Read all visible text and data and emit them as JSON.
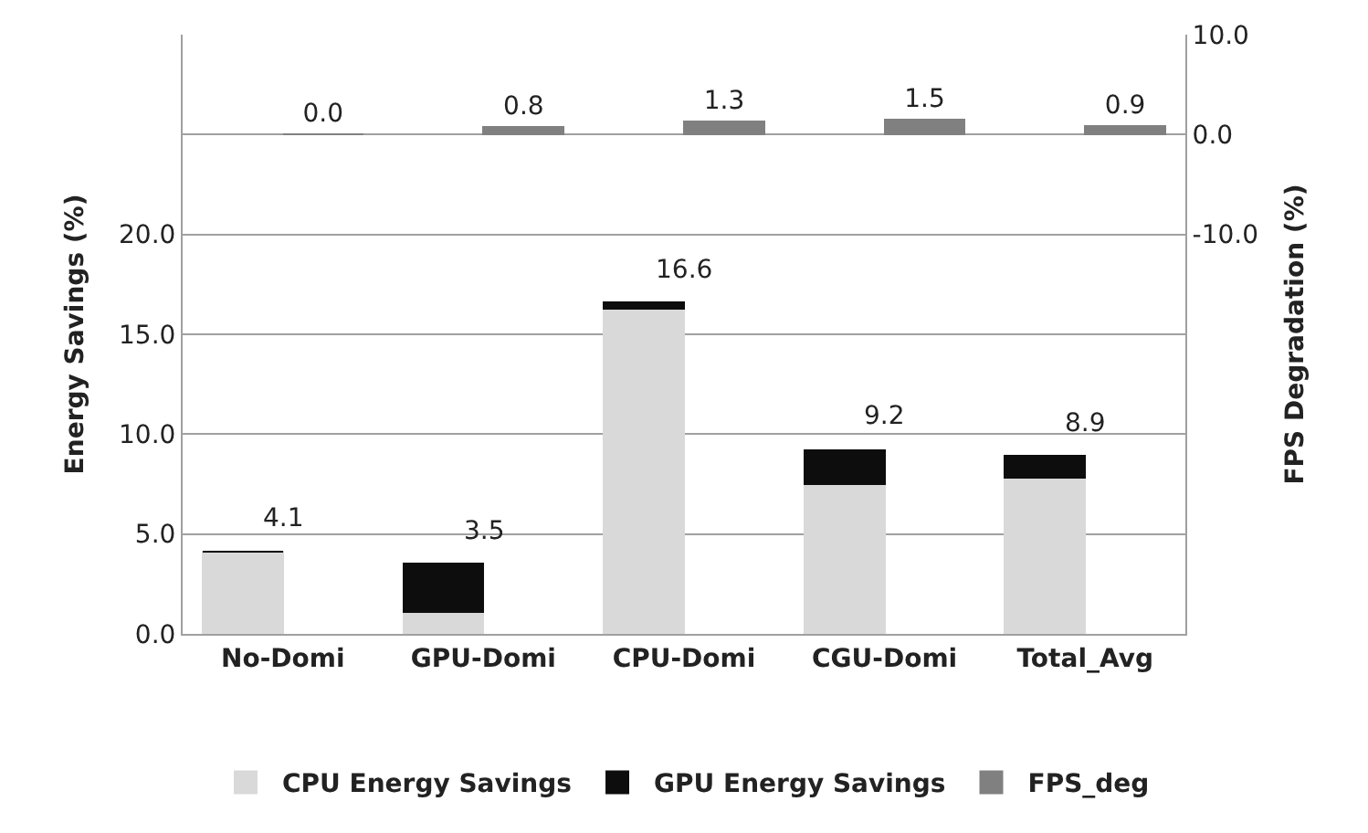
{
  "chart_data": {
    "type": "bar",
    "stacked": true,
    "ylabel": "Energy Savings (%)",
    "y2label": "FPS Degradation (%)",
    "categories": [
      "No-Domi",
      "GPU-Domi",
      "CPU-Domi",
      "CGU-Domi",
      "Total_Avg"
    ],
    "series": [
      {
        "name": "CPU Energy Savings",
        "color": "#d9d9d9",
        "values": [
          4.1,
          1.1,
          16.3,
          7.5,
          7.8
        ]
      },
      {
        "name": "GPU Energy Savings",
        "color": "#0d0d0d",
        "values": [
          0.0,
          2.4,
          0.3,
          1.7,
          1.1
        ]
      },
      {
        "name": "FPS_deg",
        "color": "#808080",
        "axis": "y2",
        "values": [
          0.0,
          0.8,
          1.3,
          1.5,
          0.9
        ],
        "value_labels": [
          "0.0",
          "0.8",
          "1.3",
          "1.5",
          "0.9"
        ]
      }
    ],
    "totals": [
      "4.1",
      "3.5",
      "16.6",
      "9.2",
      "8.9"
    ],
    "ylim": [
      0,
      30
    ],
    "yticks": [
      {
        "value": 0,
        "label": "0.0"
      },
      {
        "value": 5,
        "label": "5.0"
      },
      {
        "value": 10,
        "label": "10.0"
      },
      {
        "value": 15,
        "label": "15.0"
      },
      {
        "value": 20,
        "label": "20.0"
      }
    ],
    "y2lim": [
      -50,
      10
    ],
    "y2ticks": [
      {
        "value": -10,
        "label": "-10.0"
      },
      {
        "value": 0,
        "label": "0.0"
      },
      {
        "value": 10,
        "label": "10.0"
      }
    ],
    "grid": true,
    "legend": "bottom"
  }
}
